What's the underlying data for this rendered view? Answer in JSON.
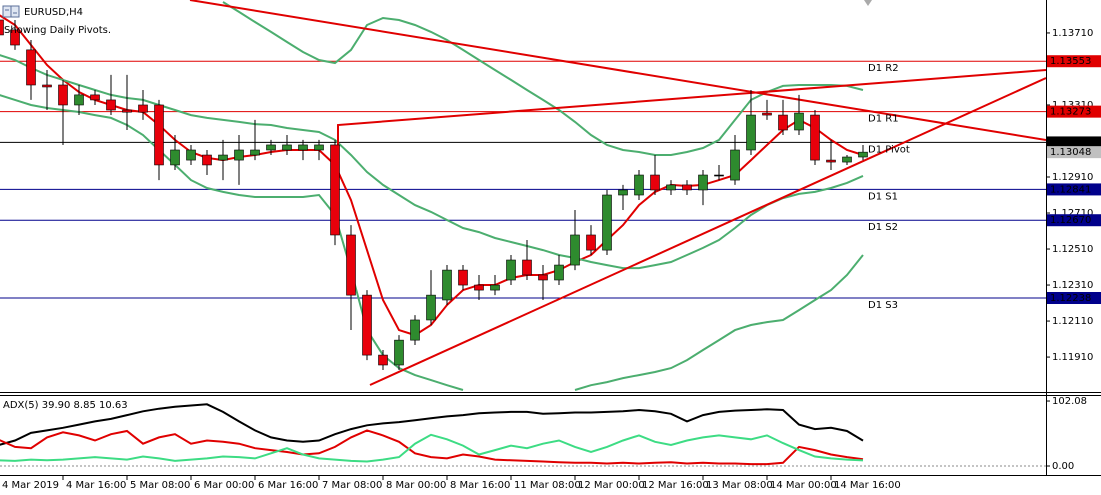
{
  "chart_data": [
    {
      "type": "candlestick",
      "title": "EURUSD,H4",
      "subtitle": "Showing Daily Pivots.",
      "categories": [
        "4 Mar 2019",
        null,
        null,
        null,
        "4 Mar 16:00",
        null,
        null,
        null,
        "5 Mar 08:00",
        null,
        null,
        null,
        "6 Mar 00:00",
        null,
        null,
        null,
        "6 Mar 16:00",
        null,
        null,
        null,
        "7 Mar 08:00",
        null,
        null,
        null,
        "8 Mar 00:00",
        null,
        null,
        null,
        "8 Mar 16:00",
        null,
        null,
        null,
        "11 Mar 08:00",
        null,
        null,
        null,
        "12 Mar 00:00",
        null,
        null,
        null,
        "12 Mar 16:00",
        null,
        null,
        null,
        "13 Mar 08:00",
        null,
        null,
        null,
        "14 Mar 00:00",
        null,
        null,
        null,
        "14 Mar 16:00",
        null,
        null
      ],
      "open": [
        1.13782,
        1.13727,
        1.13616,
        1.13421,
        1.13421,
        1.1331,
        1.13366,
        1.13338,
        1.13282,
        1.1331,
        1.1331,
        1.12977,
        1.13004,
        1.13032,
        1.13004,
        1.13004,
        1.13032,
        1.1306,
        1.1306,
        1.1306,
        1.1306,
        1.13088,
        1.12588,
        1.12254,
        1.11921,
        1.11866,
        1.12004,
        1.12116,
        1.12227,
        1.12393,
        1.1231,
        1.12282,
        1.12338,
        1.12449,
        1.12366,
        1.12338,
        1.12421,
        1.12588,
        1.12504,
        1.1281,
        1.1281,
        1.12921,
        1.12838,
        1.12866,
        1.12838,
        1.12921,
        1.12893,
        1.1306,
        1.13265,
        1.13254,
        1.13171,
        1.13254,
        1.13004,
        1.12993,
        1.13021
      ],
      "high": [
        1.13838,
        1.13782,
        1.13671,
        1.13504,
        1.13449,
        1.13421,
        1.13393,
        1.13477,
        1.13477,
        1.13393,
        1.13338,
        1.13143,
        1.13088,
        1.1306,
        1.13116,
        1.13143,
        1.13227,
        1.13116,
        1.13143,
        1.13116,
        1.13116,
        1.13116,
        1.12643,
        1.12282,
        1.11949,
        1.12032,
        1.12143,
        1.12393,
        1.12421,
        1.12421,
        1.12366,
        1.12366,
        1.12477,
        1.1256,
        1.12421,
        1.12477,
        1.12727,
        1.12643,
        1.12838,
        1.12866,
        1.12949,
        1.13032,
        1.12893,
        1.12893,
        1.12949,
        1.12977,
        1.13143,
        1.13393,
        1.13338,
        1.13338,
        1.13366,
        1.13282,
        1.13116,
        1.13032,
        1.13088
      ],
      "low": [
        1.13671,
        1.13616,
        1.13338,
        1.13282,
        1.13088,
        1.13254,
        1.1331,
        1.13254,
        1.13171,
        1.13227,
        1.12893,
        1.12949,
        1.12977,
        1.12921,
        1.12893,
        1.12866,
        1.13004,
        1.13032,
        1.13032,
        1.13004,
        1.13004,
        1.12532,
        1.1206,
        1.11893,
        1.11838,
        1.11838,
        1.11977,
        1.12088,
        1.12199,
        1.12282,
        1.12227,
        1.12254,
        1.1231,
        1.12338,
        1.12227,
        1.1231,
        1.12393,
        1.12477,
        1.12477,
        1.12727,
        1.12782,
        1.1281,
        1.1281,
        1.1281,
        1.12754,
        1.12893,
        1.12866,
        1.13032,
        1.13227,
        1.13143,
        1.13143,
        1.12977,
        1.12949,
        1.12977,
        1.13004
      ],
      "close": [
        1.13699,
        1.13643,
        1.13421,
        1.1341,
        1.1331,
        1.13366,
        1.13338,
        1.13282,
        1.1327,
        1.1327,
        1.12977,
        1.1306,
        1.1306,
        1.12977,
        1.13032,
        1.1306,
        1.1306,
        1.13088,
        1.13088,
        1.13088,
        1.13088,
        1.12588,
        1.12254,
        1.11921,
        1.11866,
        1.12004,
        1.12116,
        1.12254,
        1.12393,
        1.1231,
        1.12282,
        1.1231,
        1.12449,
        1.12366,
        1.12338,
        1.12421,
        1.12588,
        1.12504,
        1.1281,
        1.12838,
        1.12921,
        1.12838,
        1.12866,
        1.12838,
        1.12921,
        1.12921,
        1.1306,
        1.13254,
        1.13254,
        1.13171,
        1.13265,
        1.13004,
        1.12993,
        1.13021,
        1.13048
      ],
      "up_color": "#2e8b2e",
      "down_color": "#e8000b",
      "doji_color": "#000000",
      "series": [
        {
          "color": "#e00000",
          "values": [
            1.1381,
            1.13754,
            1.13643,
            1.13532,
            1.13449,
            1.13382,
            1.13338,
            1.1331,
            1.13282,
            1.13271,
            1.13199,
            1.13116,
            1.13049,
            1.13016,
            1.13004,
            1.13021,
            1.13032,
            1.13049,
            1.1306,
            1.1306,
            1.1306,
            1.12977,
            1.12782,
            1.12504,
            1.12227,
            1.1206,
            1.12032,
            1.12088,
            1.12199,
            1.12282,
            1.1231,
            1.1231,
            1.12349,
            1.12366,
            1.12366,
            1.12393,
            1.12438,
            1.12477,
            1.1256,
            1.12643,
            1.12754,
            1.12827,
            1.12866,
            1.1286,
            1.12866,
            1.12893,
            1.12921,
            1.13004,
            1.13088,
            1.13171,
            1.13227,
            1.13182,
            1.13116,
            1.1306,
            1.13032
          ]
        },
        {
          "color": "#4cae6f",
          "values": [
            null,
            null,
            null,
            null,
            null,
            null,
            null,
            null,
            null,
            null,
            null,
            null,
            null,
            null,
            1.13882,
            1.13827,
            1.13771,
            1.13716,
            1.1366,
            1.13604,
            1.1356,
            1.13543,
            1.13616,
            1.13754,
            1.13793,
            1.13782,
            1.13754,
            1.13716,
            1.13671,
            1.13616,
            1.1356,
            1.13504,
            1.13449,
            1.13393,
            1.13338,
            1.13282,
            1.13216,
            1.13143,
            1.13088,
            1.1306,
            1.13049,
            1.13032,
            1.13032,
            1.13049,
            1.13071,
            1.13116,
            1.13227,
            1.13338,
            1.13382,
            1.13416,
            1.13421,
            1.13421,
            1.13421,
            1.13416,
            1.13393
          ]
        },
        {
          "color": "#4cae6f",
          "values": [
            1.13588,
            1.1356,
            1.13516,
            1.13477,
            1.13449,
            1.13421,
            1.13393,
            1.13366,
            1.13349,
            1.13338,
            1.1331,
            1.13282,
            1.13254,
            1.13238,
            1.13227,
            1.13216,
            1.13204,
            1.13199,
            1.13182,
            1.13171,
            1.1316,
            1.13116,
            1.13032,
            1.12938,
            1.12866,
            1.1281,
            1.12754,
            1.12716,
            1.12671,
            1.12627,
            1.12604,
            1.12571,
            1.12549,
            1.12527,
            1.12504,
            1.12477,
            1.1246,
            1.12438,
            1.12421,
            1.12404,
            1.12404,
            1.12421,
            1.12438,
            1.12477,
            1.12516,
            1.1256,
            1.12627,
            1.12699,
            1.12754,
            1.12793,
            1.12816,
            1.12827,
            1.12849,
            1.12877,
            1.12916
          ]
        },
        {
          "color": "#4cae6f",
          "values": [
            1.13366,
            1.13338,
            1.1331,
            1.13293,
            1.13282,
            1.13271,
            1.13254,
            1.13238,
            1.13199,
            1.13143,
            1.1306,
            1.12977,
            1.12893,
            1.12849,
            1.12827,
            1.1281,
            1.12799,
            1.12799,
            1.12799,
            1.12799,
            1.1281,
            1.12699,
            1.12393,
            1.1206,
            1.11921,
            1.11849,
            1.1181,
            1.11782,
            1.11754,
            1.11727,
            null,
            null,
            null,
            null,
            null,
            null,
            1.11727,
            1.11754,
            1.11771,
            1.11793,
            1.1181,
            1.11827,
            1.11849,
            1.11893,
            1.11949,
            1.12004,
            1.1206,
            1.12088,
            1.12104,
            1.12116,
            1.12171,
            1.12227,
            1.12282,
            1.12366,
            1.12477
          ]
        }
      ],
      "levels": [
        {
          "name": "D1 R2",
          "value": 1.13553,
          "color": "#e00000"
        },
        {
          "name": "D1 R1",
          "value": 1.13273,
          "color": "#e00000"
        },
        {
          "name": "D1 Pivot",
          "value": 1.13102,
          "color": "#000000"
        },
        {
          "name": "D1 S1",
          "value": 1.12841,
          "color": "#00008b"
        },
        {
          "name": "D1 S2",
          "value": 1.1267,
          "value_label": "1.12670",
          "color": "#00008b"
        },
        {
          "name": "D1 S3",
          "value": 1.12238,
          "color": "#00008b"
        }
      ],
      "ylim": [
        1.11716,
        1.13893
      ],
      "yticks": [
        {
          "value": 1.1371,
          "label": "1.13710"
        },
        {
          "value": 1.1331,
          "label": "1.13310"
        },
        {
          "value": 1.1291,
          "label": "1.12910"
        },
        {
          "value": 1.1271,
          "label": "1.12710"
        },
        {
          "value": 1.1251,
          "label": "1.12510"
        },
        {
          "value": 1.1231,
          "label": "1.12310"
        },
        {
          "value": 1.1211,
          "label": "1.12110"
        },
        {
          "value": 1.1191,
          "label": "1.11910"
        }
      ],
      "grid": false
    },
    {
      "type": "line",
      "title": "ADX(5) 39.90 8.85 10.63",
      "series": [
        {
          "color": "#000000",
          "values": [
            33,
            40,
            52,
            56,
            60,
            65,
            70,
            74,
            80,
            86,
            90,
            93,
            95,
            97,
            85,
            70,
            56,
            45,
            40,
            38,
            40,
            50,
            58,
            64,
            67,
            69,
            72,
            75,
            78,
            80,
            83,
            84,
            85,
            85,
            82,
            83,
            84,
            84,
            85,
            86,
            88,
            86,
            82,
            70,
            80,
            85,
            87,
            88,
            89,
            88,
            65,
            58,
            60,
            55,
            39.9
          ]
        },
        {
          "color": "#e00000",
          "values": [
            41,
            30,
            28,
            45,
            53,
            48,
            40,
            50,
            55,
            35,
            45,
            50,
            35,
            40,
            38,
            35,
            28,
            25,
            22,
            18,
            20,
            30,
            45,
            56,
            48,
            38,
            20,
            14,
            12,
            18,
            15,
            10,
            9,
            8,
            7,
            6,
            5,
            5,
            4,
            5,
            4,
            5,
            6,
            4,
            5,
            4,
            4,
            3,
            3,
            5,
            30,
            25,
            18,
            14,
            10.63
          ]
        },
        {
          "color": "#3ddc84",
          "values": [
            9,
            8,
            10,
            9,
            10,
            12,
            14,
            12,
            10,
            15,
            12,
            8,
            10,
            12,
            15,
            14,
            12,
            20,
            28,
            18,
            12,
            10,
            8,
            7,
            10,
            14,
            35,
            49,
            42,
            32,
            18,
            25,
            32,
            28,
            35,
            40,
            30,
            22,
            30,
            40,
            48,
            38,
            33,
            40,
            45,
            48,
            45,
            42,
            48,
            36,
            25,
            15,
            12,
            10,
            8.85
          ]
        }
      ],
      "ylim": [
        -11,
        108.4
      ],
      "yticks": [
        102.08,
        {
          "value": 0,
          "label": "0.00"
        }
      ]
    }
  ]
}
